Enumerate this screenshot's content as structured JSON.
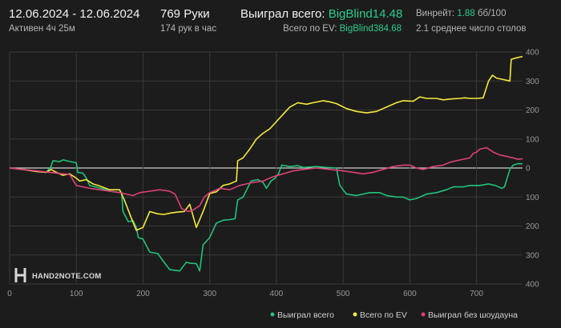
{
  "header": {
    "date_range": "12.06.2024 - 12.06.2024",
    "active_time": "Активен 4ч 25м",
    "hands": "769 Руки",
    "hands_per_hour": "174 рук в час",
    "won_total_label": "Выиграл всего:",
    "won_total_value": "BigBlind14.48",
    "total_ev_label": "Всего по EV:",
    "total_ev_value": "BigBlind384.68",
    "winrate_label": "Винрейт:",
    "winrate_value": "1.88",
    "winrate_bb": "бб/100",
    "avg_tables": "2.1 среднее число столов"
  },
  "brand": {
    "logo_text": "HAND2NOTE.COM"
  },
  "colors": {
    "background": "#1c1c1c",
    "grid": "#3a3a3a",
    "zero_line": "#cfcfcf",
    "won_total": "#22c37a",
    "total_ev": "#f4ea3c",
    "won_no_showdown": "#e0407a"
  },
  "chart_data": {
    "type": "line",
    "xlim": [
      0,
      769
    ],
    "ylim": [
      -400,
      400
    ],
    "x_ticks": [
      0,
      100,
      200,
      300,
      400,
      500,
      600,
      700
    ],
    "x_tick_labels": [
      "0",
      "100",
      "200",
      "300",
      "400",
      "500",
      "600",
      "700"
    ],
    "y_ticks": [
      400,
      300,
      200,
      100,
      0,
      -100,
      -200,
      -300,
      -400
    ],
    "y_tick_labels": [
      "400",
      "300",
      "200",
      "100",
      "0",
      "100",
      "200",
      "300",
      "400"
    ],
    "grid": true,
    "legend_position": "bottom-right",
    "series": [
      {
        "name": "Выиграл всего",
        "color_key": "won_total",
        "points": [
          [
            0,
            0
          ],
          [
            20,
            -5
          ],
          [
            40,
            -12
          ],
          [
            55,
            -15
          ],
          [
            62,
            5
          ],
          [
            65,
            25
          ],
          [
            75,
            22
          ],
          [
            80,
            28
          ],
          [
            85,
            25
          ],
          [
            100,
            18
          ],
          [
            102,
            -15
          ],
          [
            110,
            -18
          ],
          [
            115,
            -35
          ],
          [
            120,
            -60
          ],
          [
            140,
            -72
          ],
          [
            150,
            -80
          ],
          [
            168,
            -85
          ],
          [
            170,
            -150
          ],
          [
            178,
            -185
          ],
          [
            185,
            -182
          ],
          [
            190,
            -205
          ],
          [
            193,
            -240
          ],
          [
            200,
            -245
          ],
          [
            210,
            -290
          ],
          [
            222,
            -295
          ],
          [
            230,
            -320
          ],
          [
            240,
            -350
          ],
          [
            255,
            -355
          ],
          [
            265,
            -325
          ],
          [
            270,
            -328
          ],
          [
            280,
            -330
          ],
          [
            285,
            -355
          ],
          [
            290,
            -265
          ],
          [
            300,
            -240
          ],
          [
            305,
            -215
          ],
          [
            310,
            -190
          ],
          [
            320,
            -180
          ],
          [
            330,
            -178
          ],
          [
            338,
            -175
          ],
          [
            342,
            -110
          ],
          [
            350,
            -100
          ],
          [
            362,
            -45
          ],
          [
            372,
            -40
          ],
          [
            380,
            -50
          ],
          [
            385,
            -70
          ],
          [
            392,
            -45
          ],
          [
            398,
            -35
          ],
          [
            403,
            -20
          ],
          [
            408,
            10
          ],
          [
            420,
            5
          ],
          [
            432,
            8
          ],
          [
            440,
            2
          ],
          [
            460,
            5
          ],
          [
            475,
            2
          ],
          [
            490,
            0
          ],
          [
            495,
            -60
          ],
          [
            505,
            -90
          ],
          [
            520,
            -95
          ],
          [
            540,
            -85
          ],
          [
            555,
            -85
          ],
          [
            565,
            -95
          ],
          [
            580,
            -100
          ],
          [
            590,
            -100
          ],
          [
            600,
            -110
          ],
          [
            610,
            -105
          ],
          [
            625,
            -90
          ],
          [
            640,
            -85
          ],
          [
            655,
            -75
          ],
          [
            665,
            -65
          ],
          [
            680,
            -65
          ],
          [
            690,
            -60
          ],
          [
            705,
            -60
          ],
          [
            718,
            -55
          ],
          [
            728,
            -60
          ],
          [
            738,
            -70
          ],
          [
            742,
            -65
          ],
          [
            750,
            -5
          ],
          [
            755,
            10
          ],
          [
            762,
            15
          ],
          [
            769,
            14.48
          ]
        ]
      },
      {
        "name": "Всего по EV",
        "color_key": "total_ev",
        "points": [
          [
            0,
            0
          ],
          [
            20,
            -5
          ],
          [
            40,
            -12
          ],
          [
            55,
            -15
          ],
          [
            62,
            -5
          ],
          [
            70,
            -15
          ],
          [
            80,
            -25
          ],
          [
            90,
            -20
          ],
          [
            100,
            -35
          ],
          [
            105,
            -45
          ],
          [
            115,
            -40
          ],
          [
            125,
            -55
          ],
          [
            135,
            -62
          ],
          [
            150,
            -75
          ],
          [
            165,
            -75
          ],
          [
            172,
            -110
          ],
          [
            182,
            -170
          ],
          [
            190,
            -215
          ],
          [
            200,
            -205
          ],
          [
            210,
            -150
          ],
          [
            222,
            -158
          ],
          [
            232,
            -160
          ],
          [
            242,
            -155
          ],
          [
            252,
            -152
          ],
          [
            262,
            -150
          ],
          [
            270,
            -125
          ],
          [
            280,
            -205
          ],
          [
            290,
            -150
          ],
          [
            300,
            -88
          ],
          [
            310,
            -82
          ],
          [
            320,
            -60
          ],
          [
            330,
            -55
          ],
          [
            340,
            -45
          ],
          [
            342,
            25
          ],
          [
            350,
            35
          ],
          [
            360,
            65
          ],
          [
            370,
            100
          ],
          [
            380,
            120
          ],
          [
            390,
            135
          ],
          [
            400,
            160
          ],
          [
            410,
            185
          ],
          [
            420,
            210
          ],
          [
            432,
            225
          ],
          [
            445,
            220
          ],
          [
            455,
            225
          ],
          [
            470,
            232
          ],
          [
            480,
            228
          ],
          [
            490,
            222
          ],
          [
            505,
            205
          ],
          [
            520,
            195
          ],
          [
            535,
            190
          ],
          [
            550,
            195
          ],
          [
            565,
            210
          ],
          [
            580,
            225
          ],
          [
            590,
            232
          ],
          [
            605,
            230
          ],
          [
            615,
            245
          ],
          [
            625,
            240
          ],
          [
            640,
            240
          ],
          [
            650,
            235
          ],
          [
            662,
            238
          ],
          [
            675,
            240
          ],
          [
            682,
            242
          ],
          [
            690,
            240
          ],
          [
            702,
            240
          ],
          [
            710,
            242
          ],
          [
            718,
            300
          ],
          [
            724,
            320
          ],
          [
            730,
            310
          ],
          [
            740,
            305
          ],
          [
            750,
            300
          ],
          [
            752,
            375
          ],
          [
            760,
            380
          ],
          [
            769,
            384.68
          ]
        ]
      },
      {
        "name": "Выиграл без шоудауна",
        "color_key": "won_no_showdown",
        "points": [
          [
            0,
            0
          ],
          [
            20,
            -5
          ],
          [
            40,
            -10
          ],
          [
            60,
            -15
          ],
          [
            80,
            -20
          ],
          [
            90,
            -22
          ],
          [
            100,
            -60
          ],
          [
            110,
            -65
          ],
          [
            120,
            -70
          ],
          [
            135,
            -75
          ],
          [
            150,
            -80
          ],
          [
            165,
            -85
          ],
          [
            175,
            -90
          ],
          [
            185,
            -95
          ],
          [
            195,
            -85
          ],
          [
            210,
            -80
          ],
          [
            225,
            -75
          ],
          [
            240,
            -80
          ],
          [
            248,
            -90
          ],
          [
            258,
            -140
          ],
          [
            268,
            -150
          ],
          [
            275,
            -145
          ],
          [
            285,
            -130
          ],
          [
            292,
            -100
          ],
          [
            300,
            -85
          ],
          [
            315,
            -70
          ],
          [
            330,
            -75
          ],
          [
            345,
            -60
          ],
          [
            355,
            -55
          ],
          [
            365,
            -50
          ],
          [
            380,
            -45
          ],
          [
            395,
            -30
          ],
          [
            410,
            -20
          ],
          [
            425,
            -10
          ],
          [
            440,
            -5
          ],
          [
            460,
            0
          ],
          [
            480,
            -5
          ],
          [
            500,
            -10
          ],
          [
            515,
            -15
          ],
          [
            530,
            -20
          ],
          [
            545,
            -15
          ],
          [
            560,
            -5
          ],
          [
            575,
            5
          ],
          [
            590,
            10
          ],
          [
            600,
            10
          ],
          [
            610,
            0
          ],
          [
            620,
            -5
          ],
          [
            635,
            5
          ],
          [
            650,
            10
          ],
          [
            660,
            20
          ],
          [
            670,
            25
          ],
          [
            680,
            30
          ],
          [
            690,
            35
          ],
          [
            695,
            50
          ],
          [
            700,
            55
          ],
          [
            705,
            65
          ],
          [
            715,
            70
          ],
          [
            725,
            55
          ],
          [
            735,
            45
          ],
          [
            745,
            40
          ],
          [
            755,
            35
          ],
          [
            762,
            30
          ],
          [
            769,
            32
          ]
        ]
      }
    ]
  }
}
